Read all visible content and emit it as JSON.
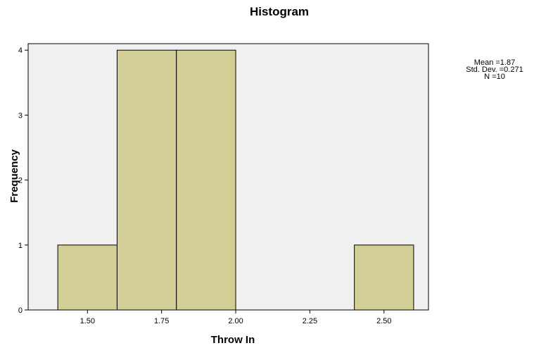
{
  "chart_data": {
    "type": "histogram",
    "title": "Histogram",
    "xlabel": "Throw In",
    "ylabel": "Frequency",
    "bins": [
      {
        "start": 1.4,
        "end": 1.6,
        "count": 1
      },
      {
        "start": 1.6,
        "end": 1.8,
        "count": 4
      },
      {
        "start": 1.8,
        "end": 2.0,
        "count": 4
      },
      {
        "start": 2.0,
        "end": 2.2,
        "count": 0
      },
      {
        "start": 2.2,
        "end": 2.4,
        "count": 0
      },
      {
        "start": 2.4,
        "end": 2.6,
        "count": 1
      }
    ],
    "xlim": [
      1.3,
      2.65
    ],
    "ylim": [
      0,
      4.1
    ],
    "x_ticks": [
      1.5,
      1.75,
      2.0,
      2.25,
      2.5
    ],
    "x_tick_labels": [
      "1.50",
      "1.75",
      "2.00",
      "2.25",
      "2.50"
    ],
    "y_ticks": [
      0,
      1,
      2,
      3,
      4
    ],
    "y_tick_labels": [
      "0",
      "1",
      "2",
      "3",
      "4"
    ],
    "stats": [
      "Mean =1.87",
      "Std. Dev. =0.271",
      "N =10"
    ],
    "colors": {
      "bar_fill": "#d3ce95",
      "bar_stroke": "#000000",
      "plot_background": "#f0f0f0"
    },
    "grid": false,
    "legend_position": "top-right"
  }
}
